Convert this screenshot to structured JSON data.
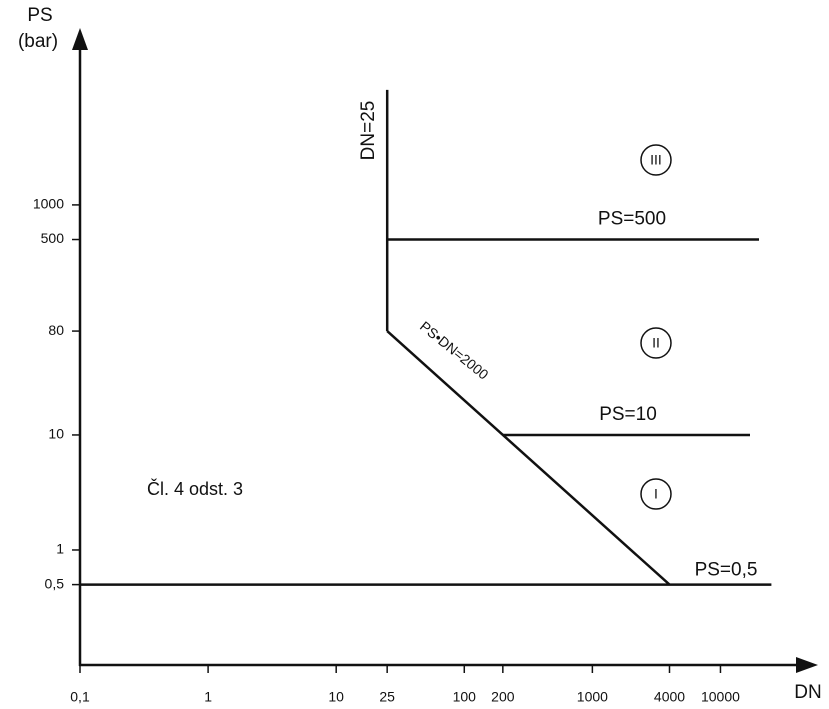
{
  "chart_data": {
    "type": "line",
    "y_label": "PS",
    "y_label_unit": "(bar)",
    "x_label": "DN",
    "log_x": true,
    "log_y": true,
    "xlim": [
      0.1,
      50000
    ],
    "ylim": [
      0.1,
      30000
    ],
    "xticks": [
      {
        "value": 0.1,
        "label": "0,1"
      },
      1,
      10,
      25,
      100,
      200,
      1000,
      4000,
      10000
    ],
    "yticks": [
      {
        "value": 0.5,
        "label": "0,5"
      },
      1,
      10,
      80,
      500,
      1000
    ],
    "series": [
      {
        "name": "DN=25",
        "color": "#111111",
        "x": [
          25,
          25
        ],
        "values": [
          80,
          10000
        ]
      },
      {
        "name": "PS•DN=2000",
        "color": "#111111",
        "x": [
          25,
          4000
        ],
        "values": [
          80,
          0.5
        ]
      },
      {
        "name": "PS=500",
        "color": "#111111",
        "x": [
          25,
          20000
        ],
        "values": [
          500,
          500
        ]
      },
      {
        "name": "PS=10",
        "color": "#111111",
        "x": [
          200,
          17000
        ],
        "values": [
          10,
          10
        ]
      },
      {
        "name": "PS=0,5",
        "color": "#111111",
        "x": [
          0.1,
          25000
        ],
        "values": [
          0.5,
          0.5
        ]
      }
    ],
    "annotations": [
      "III",
      "II",
      "I",
      "Čl. 4 odst. 3"
    ]
  }
}
